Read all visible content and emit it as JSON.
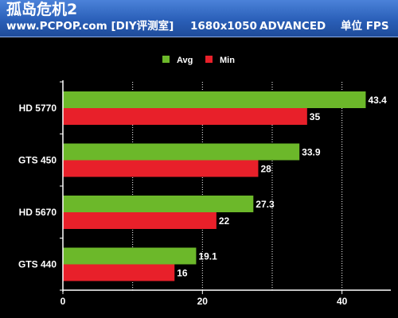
{
  "header": {
    "title": "孤岛危机2",
    "site": "www.PCPOP.com [DIY评测室]",
    "resolution": "1680x1050",
    "quality": "ADVANCED",
    "unit": "单位 FPS"
  },
  "colors": {
    "avg": "#6cb82a",
    "min": "#e8202a",
    "background": "#000000",
    "header": "#2a5fb8"
  },
  "chart_data": {
    "type": "bar",
    "orientation": "horizontal",
    "categories": [
      "HD 5770",
      "GTS 450",
      "HD 5670",
      "GTS 440"
    ],
    "series": [
      {
        "name": "Avg",
        "values": [
          43.4,
          33.9,
          27.3,
          19.1
        ],
        "labels": [
          "43.4",
          "33.9",
          "27.3",
          "19.1"
        ]
      },
      {
        "name": "Min",
        "values": [
          35,
          28,
          22,
          16
        ],
        "labels": [
          "35",
          "28",
          "22",
          "16"
        ]
      }
    ],
    "xlim": [
      0,
      47
    ],
    "xticks": [
      0,
      20,
      40
    ],
    "xtick_labels": [
      "0",
      "20",
      "40"
    ],
    "legend_position": "top-center",
    "grid": "vertical-dotted"
  }
}
